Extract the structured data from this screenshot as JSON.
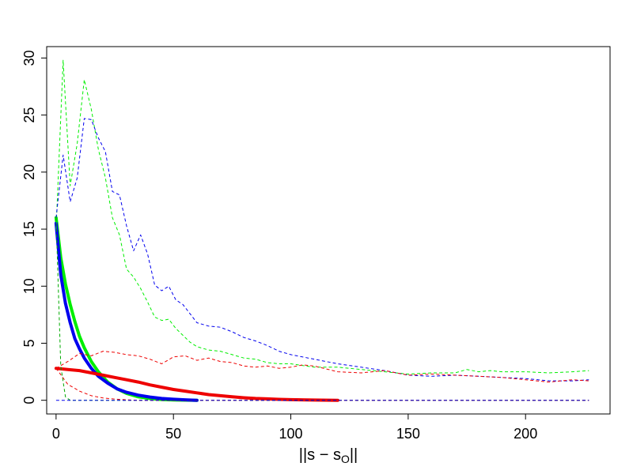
{
  "chart_data": {
    "type": "line",
    "xlabel_parts": {
      "left": "||s − s",
      "sub": "O",
      "right": "||"
    },
    "ylabel": "",
    "xlim": [
      -4,
      236
    ],
    "ylim": [
      -1.2,
      31.0
    ],
    "xticks": [
      0,
      50,
      100,
      150,
      200
    ],
    "yticks": [
      0,
      5,
      10,
      15,
      20,
      25,
      30
    ],
    "grid": false,
    "legend": "none",
    "series": [
      {
        "color": "#00ee00",
        "style": "solid",
        "width": 4,
        "x": [
          0,
          2,
          4,
          6,
          8,
          10,
          12,
          15,
          18,
          22,
          26,
          30,
          35,
          40,
          45,
          50,
          55,
          60
        ],
        "y": [
          16.0,
          12.5,
          10.2,
          8.4,
          6.9,
          5.6,
          4.6,
          3.4,
          2.5,
          1.6,
          1.0,
          0.6,
          0.3,
          0.15,
          0.07,
          0.03,
          0.01,
          0.0
        ]
      },
      {
        "color": "#0000ee",
        "style": "solid",
        "width": 4,
        "x": [
          0,
          2,
          4,
          6,
          8,
          10,
          12,
          15,
          18,
          22,
          26,
          30,
          35,
          40,
          45,
          50,
          55,
          60
        ],
        "y": [
          15.5,
          11.0,
          8.5,
          6.8,
          5.4,
          4.5,
          3.7,
          2.8,
          2.1,
          1.5,
          1.0,
          0.7,
          0.45,
          0.28,
          0.16,
          0.09,
          0.04,
          0.0
        ]
      },
      {
        "color": "#ee0000",
        "style": "solid",
        "width": 4,
        "x": [
          0,
          5,
          10,
          15,
          20,
          25,
          30,
          35,
          40,
          45,
          50,
          55,
          60,
          65,
          70,
          75,
          80,
          85,
          90,
          95,
          100,
          110,
          120
        ],
        "y": [
          2.8,
          2.7,
          2.6,
          2.4,
          2.2,
          2.0,
          1.8,
          1.6,
          1.35,
          1.15,
          0.95,
          0.8,
          0.65,
          0.5,
          0.4,
          0.3,
          0.22,
          0.16,
          0.12,
          0.08,
          0.05,
          0.02,
          0.0
        ]
      },
      {
        "color": "#00ee00",
        "style": "dashed",
        "width": 1,
        "x": [
          0,
          3,
          6,
          9,
          12,
          15,
          18,
          21,
          24,
          27,
          30,
          33,
          36,
          39,
          42,
          45,
          48,
          51,
          54,
          57,
          60,
          65,
          70,
          75,
          80,
          85,
          90,
          95,
          100,
          110,
          120,
          130,
          140,
          150,
          160,
          170,
          175,
          180,
          185,
          190,
          200,
          210,
          220,
          227
        ],
        "y": [
          15.0,
          29.8,
          18.8,
          22.5,
          28.1,
          25.5,
          22.0,
          19.5,
          16.0,
          14.5,
          11.5,
          10.8,
          9.8,
          8.6,
          7.3,
          7.0,
          7.1,
          6.3,
          5.7,
          5.1,
          4.7,
          4.4,
          4.3,
          4.0,
          3.7,
          3.6,
          3.3,
          3.2,
          3.2,
          2.9,
          2.9,
          2.7,
          2.5,
          2.3,
          2.4,
          2.4,
          2.7,
          2.5,
          2.6,
          2.5,
          2.5,
          2.4,
          2.5,
          2.6
        ]
      },
      {
        "color": "#0000ee",
        "style": "dashed",
        "width": 1,
        "x": [
          0,
          3,
          6,
          9,
          12,
          15,
          18,
          21,
          24,
          27,
          30,
          33,
          36,
          39,
          42,
          45,
          48,
          51,
          54,
          57,
          60,
          65,
          70,
          75,
          80,
          85,
          90,
          95,
          100,
          110,
          120,
          130,
          140,
          150,
          160,
          170,
          180,
          190,
          200,
          210,
          220,
          227
        ],
        "y": [
          16.0,
          21.5,
          17.4,
          19.5,
          24.7,
          24.6,
          23.0,
          21.8,
          18.3,
          18.0,
          15.3,
          13.1,
          14.5,
          12.8,
          10.1,
          9.6,
          10.0,
          8.8,
          8.4,
          7.6,
          6.8,
          6.5,
          6.4,
          6.0,
          5.5,
          5.2,
          4.8,
          4.3,
          4.0,
          3.6,
          3.2,
          2.9,
          2.6,
          2.2,
          2.1,
          2.2,
          2.1,
          2.0,
          1.9,
          1.7,
          1.7,
          1.8
        ]
      },
      {
        "color": "#ee0000",
        "style": "dashed",
        "width": 1,
        "x": [
          0,
          5,
          10,
          15,
          20,
          25,
          30,
          35,
          40,
          45,
          50,
          55,
          60,
          65,
          70,
          75,
          80,
          85,
          90,
          95,
          100,
          105,
          110,
          120,
          130,
          140,
          150,
          160,
          170,
          180,
          190,
          200,
          210,
          220,
          227
        ],
        "y": [
          2.8,
          3.4,
          4.1,
          3.9,
          4.3,
          4.2,
          4.0,
          3.9,
          3.6,
          3.2,
          3.8,
          3.9,
          3.5,
          3.7,
          3.4,
          3.3,
          3.0,
          2.9,
          3.0,
          2.8,
          2.9,
          3.1,
          3.0,
          2.5,
          2.4,
          2.6,
          2.2,
          2.3,
          2.2,
          2.1,
          2.0,
          1.8,
          1.6,
          1.8,
          1.7
        ]
      },
      {
        "color": "#00aa00",
        "style": "dashed",
        "width": 1,
        "x": [
          0,
          2,
          4,
          6,
          8,
          10,
          227
        ],
        "y": [
          16.0,
          3.0,
          0.3,
          0.0,
          0.0,
          0.0,
          0.0
        ]
      },
      {
        "color": "#ee0000",
        "style": "dashed",
        "width": 1,
        "x": [
          0,
          5,
          10,
          15,
          20,
          25,
          30,
          35,
          40,
          227
        ],
        "y": [
          2.8,
          1.4,
          0.8,
          0.4,
          0.2,
          0.1,
          0.04,
          0.0,
          0.0,
          0.0
        ]
      },
      {
        "color": "#0000ee",
        "style": "dashed",
        "width": 1,
        "x": [
          0,
          227
        ],
        "y": [
          0.0,
          0.0
        ]
      }
    ]
  }
}
